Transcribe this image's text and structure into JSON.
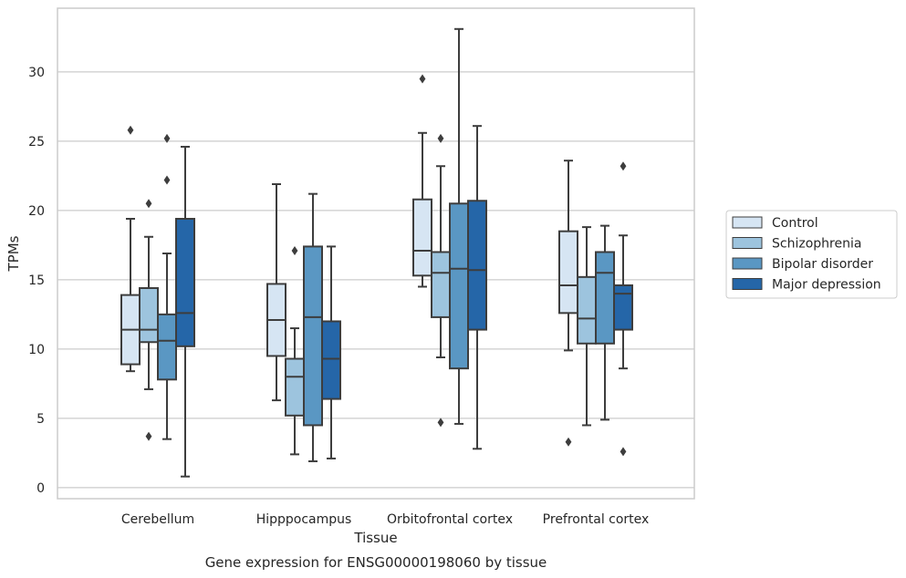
{
  "chart_data": {
    "type": "box",
    "xlabel": "Tissue",
    "ylabel": "TPMs",
    "caption": "Gene expression for ENSG00000198060 by tissue",
    "ylim": [
      -0.8,
      34.6
    ],
    "yticks": [
      0,
      5,
      10,
      15,
      20,
      25,
      30
    ],
    "grid": "horizontal",
    "legend_position": "right",
    "categories": [
      "Cerebellum",
      "Hipppocampus",
      "Orbitofrontal cortex",
      "Prefrontal cortex"
    ],
    "series": [
      {
        "name": "Control",
        "color": "#d6e5f3",
        "boxes": [
          {
            "whisker_low": 8.4,
            "q1": 8.9,
            "median": 11.4,
            "q3": 13.9,
            "whisker_high": 19.4,
            "outliers": [
              25.8
            ]
          },
          {
            "whisker_low": 6.3,
            "q1": 9.5,
            "median": 12.1,
            "q3": 14.7,
            "whisker_high": 21.9,
            "outliers": []
          },
          {
            "whisker_low": 14.5,
            "q1": 15.3,
            "median": 17.1,
            "q3": 20.8,
            "whisker_high": 25.6,
            "outliers": [
              29.5
            ]
          },
          {
            "whisker_low": 9.9,
            "q1": 12.6,
            "median": 14.6,
            "q3": 18.5,
            "whisker_high": 23.6,
            "outliers": [
              3.3
            ]
          }
        ]
      },
      {
        "name": "Schizophrenia",
        "color": "#9dc4de",
        "boxes": [
          {
            "whisker_low": 7.1,
            "q1": 10.5,
            "median": 11.4,
            "q3": 14.4,
            "whisker_high": 18.1,
            "outliers": [
              20.5,
              3.7
            ]
          },
          {
            "whisker_low": 2.4,
            "q1": 5.2,
            "median": 8.0,
            "q3": 9.3,
            "whisker_high": 11.5,
            "outliers": [
              17.1
            ]
          },
          {
            "whisker_low": 9.4,
            "q1": 12.3,
            "median": 15.5,
            "q3": 17.0,
            "whisker_high": 23.2,
            "outliers": [
              25.2,
              4.7
            ]
          },
          {
            "whisker_low": 4.5,
            "q1": 10.4,
            "median": 12.2,
            "q3": 15.2,
            "whisker_high": 18.8,
            "outliers": []
          }
        ]
      },
      {
        "name": "Bipolar disorder",
        "color": "#5a97c3",
        "boxes": [
          {
            "whisker_low": 3.5,
            "q1": 7.8,
            "median": 10.6,
            "q3": 12.5,
            "whisker_high": 16.9,
            "outliers": [
              25.2,
              22.2
            ]
          },
          {
            "whisker_low": 1.9,
            "q1": 4.5,
            "median": 12.3,
            "q3": 17.4,
            "whisker_high": 21.2,
            "outliers": []
          },
          {
            "whisker_low": 4.6,
            "q1": 8.6,
            "median": 15.8,
            "q3": 20.5,
            "whisker_high": 33.1,
            "outliers": []
          },
          {
            "whisker_low": 4.9,
            "q1": 10.4,
            "median": 15.5,
            "q3": 17.0,
            "whisker_high": 18.9,
            "outliers": []
          }
        ]
      },
      {
        "name": "Major depression",
        "color": "#2566a8",
        "boxes": [
          {
            "whisker_low": 0.8,
            "q1": 10.2,
            "median": 12.6,
            "q3": 19.4,
            "whisker_high": 24.6,
            "outliers": []
          },
          {
            "whisker_low": 2.1,
            "q1": 6.4,
            "median": 9.3,
            "q3": 12.0,
            "whisker_high": 17.4,
            "outliers": []
          },
          {
            "whisker_low": 2.8,
            "q1": 11.4,
            "median": 15.7,
            "q3": 20.7,
            "whisker_high": 26.1,
            "outliers": []
          },
          {
            "whisker_low": 8.6,
            "q1": 11.4,
            "median": 14.0,
            "q3": 14.6,
            "whisker_high": 18.2,
            "outliers": [
              23.2,
              2.6
            ]
          }
        ]
      }
    ]
  }
}
